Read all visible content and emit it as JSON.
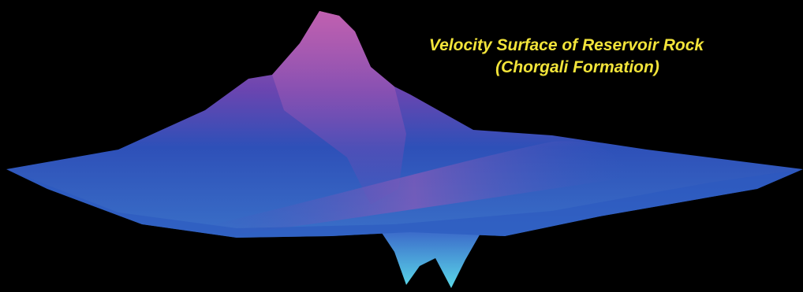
{
  "title": {
    "line1": "Velocity Surface of Reservoir Rock",
    "line2": "(Chorgali Formation)"
  }
}
